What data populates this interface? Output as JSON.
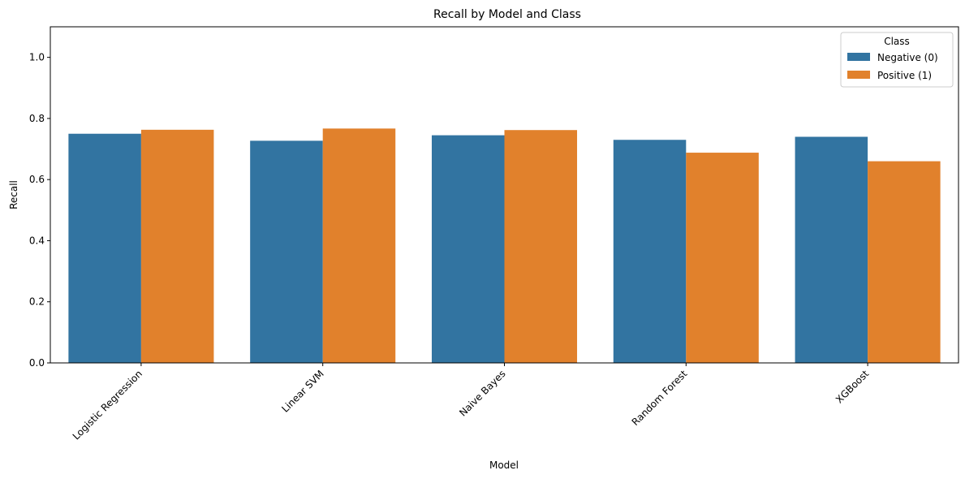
{
  "chart_data": {
    "type": "bar",
    "title": "Recall by Model and Class",
    "xlabel": "Model",
    "ylabel": "Recall",
    "ylim": [
      0,
      1.1
    ],
    "yticks": [
      0.0,
      0.2,
      0.4,
      0.6,
      0.8,
      1.0
    ],
    "ytick_labels": [
      "0.0",
      "0.2",
      "0.4",
      "0.6",
      "0.8",
      "1.0"
    ],
    "categories": [
      "Logistic Regression",
      "Linear SVM",
      "Naive Bayes",
      "Random Forest",
      "XGBoost"
    ],
    "series": [
      {
        "name": "Negative (0)",
        "color": "#3274a1",
        "values": [
          0.75,
          0.727,
          0.745,
          0.73,
          0.74
        ]
      },
      {
        "name": "Positive (1)",
        "color": "#e1812c",
        "values": [
          0.763,
          0.767,
          0.762,
          0.688,
          0.66
        ]
      }
    ],
    "legend": {
      "title": "Class",
      "placement": "top-right"
    },
    "grid": false
  }
}
